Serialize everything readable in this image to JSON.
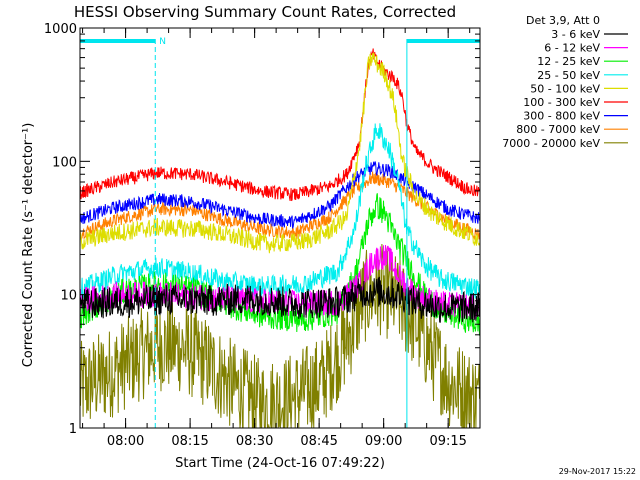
{
  "chart_data": {
    "type": "line",
    "title": "HESSI Observing Summary Count Rates, Corrected",
    "xlabel": "Start Time (24-Oct-16 07:49:22)",
    "ylabel": "Corrected Count Rate (s⁻¹ detector⁻¹)",
    "y_scale": "log",
    "ylim": [
      1,
      1000
    ],
    "xlim_minutes_after_start": [
      0,
      93
    ],
    "x_ticks": [
      "08:00",
      "08:15",
      "08:30",
      "08:45",
      "09:00",
      "09:15"
    ],
    "x_tick_minutes_after_start": [
      10.6,
      25.6,
      40.6,
      55.6,
      70.6,
      85.6
    ],
    "y_ticks": [
      "1",
      "10",
      "100",
      "1000"
    ],
    "y_tick_values": [
      1,
      10,
      100,
      1000
    ],
    "legend_title": "Det 3,9, Att 0",
    "legend_position": "right",
    "footer_date": "29-Nov-2017 15:22",
    "markers": {
      "night_bars": [
        [
          0,
          17.5
        ],
        [
          76,
          93
        ]
      ],
      "vertical_lines_minutes": [
        17.5,
        76
      ],
      "saa_flag": "N"
    },
    "series": [
      {
        "name": "3 - 6 keV",
        "color": "#000000",
        "noise": 0.12,
        "points": [
          [
            0,
            8.5
          ],
          [
            10,
            8.8
          ],
          [
            20,
            9.2
          ],
          [
            30,
            9.0
          ],
          [
            40,
            9.3
          ],
          [
            50,
            8.6
          ],
          [
            60,
            8.8
          ],
          [
            66,
            10.5
          ],
          [
            70,
            10.5
          ],
          [
            74,
            10.0
          ],
          [
            78,
            8.8
          ],
          [
            84,
            8.0
          ],
          [
            93,
            8.0
          ]
        ]
      },
      {
        "name": "6 - 12 keV",
        "color": "#ff00ff",
        "noise": 0.1,
        "points": [
          [
            0,
            9.0
          ],
          [
            10,
            10.0
          ],
          [
            20,
            10.0
          ],
          [
            30,
            9.5
          ],
          [
            40,
            9.0
          ],
          [
            52,
            8.5
          ],
          [
            60,
            8.8
          ],
          [
            65,
            12
          ],
          [
            68,
            18
          ],
          [
            70,
            19.5
          ],
          [
            72,
            18.5
          ],
          [
            74,
            14
          ],
          [
            78,
            10
          ],
          [
            84,
            8.5
          ],
          [
            93,
            8.0
          ]
        ]
      },
      {
        "name": "12 - 25 keV",
        "color": "#00ee00",
        "noise": 0.1,
        "points": [
          [
            0,
            7.0
          ],
          [
            10,
            10.5
          ],
          [
            18,
            12.0
          ],
          [
            26,
            11.0
          ],
          [
            34,
            8.5
          ],
          [
            42,
            7.0
          ],
          [
            52,
            6.5
          ],
          [
            60,
            7.5
          ],
          [
            64,
            14
          ],
          [
            67,
            35
          ],
          [
            69,
            47
          ],
          [
            71,
            40
          ],
          [
            73,
            28
          ],
          [
            76,
            18
          ],
          [
            80,
            10
          ],
          [
            84,
            7.5
          ],
          [
            93,
            6.0
          ]
        ]
      },
      {
        "name": "25 - 50 keV",
        "color": "#00eeee",
        "noise": 0.08,
        "points": [
          [
            0,
            11.0
          ],
          [
            10,
            14.5
          ],
          [
            18,
            16.0
          ],
          [
            26,
            14.5
          ],
          [
            34,
            12.5
          ],
          [
            42,
            11.5
          ],
          [
            52,
            12.0
          ],
          [
            60,
            15.0
          ],
          [
            64,
            32
          ],
          [
            66,
            80
          ],
          [
            68,
            140
          ],
          [
            69,
            175
          ],
          [
            70,
            160
          ],
          [
            72,
            120
          ],
          [
            74,
            70
          ],
          [
            76,
            30
          ],
          [
            80,
            17
          ],
          [
            84,
            13
          ],
          [
            93,
            11.0
          ]
        ]
      },
      {
        "name": "50 - 100 keV",
        "color": "#dddd00",
        "noise": 0.07,
        "points": [
          [
            0,
            25
          ],
          [
            8,
            29
          ],
          [
            18,
            32
          ],
          [
            28,
            31
          ],
          [
            36,
            27
          ],
          [
            44,
            24
          ],
          [
            52,
            25
          ],
          [
            58,
            30
          ],
          [
            62,
            38
          ],
          [
            65,
            130
          ],
          [
            67,
            520
          ],
          [
            68,
            610
          ],
          [
            69,
            540
          ],
          [
            71,
            450
          ],
          [
            73,
            280
          ],
          [
            75,
            100
          ],
          [
            78,
            55
          ],
          [
            82,
            40
          ],
          [
            87,
            32
          ],
          [
            93,
            26
          ]
        ]
      },
      {
        "name": "100 - 300 keV",
        "color": "#ff0000",
        "noise": 0.05,
        "points": [
          [
            0,
            58
          ],
          [
            8,
            70
          ],
          [
            18,
            82
          ],
          [
            26,
            80
          ],
          [
            34,
            70
          ],
          [
            42,
            60
          ],
          [
            50,
            56
          ],
          [
            58,
            65
          ],
          [
            62,
            80
          ],
          [
            65,
            140
          ],
          [
            67,
            520
          ],
          [
            68,
            640
          ],
          [
            69,
            560
          ],
          [
            71,
            470
          ],
          [
            73,
            420
          ],
          [
            74,
            370
          ],
          [
            75,
            300
          ],
          [
            76,
            190
          ],
          [
            78,
            120
          ],
          [
            82,
            90
          ],
          [
            86,
            75
          ],
          [
            90,
            62
          ],
          [
            93,
            58
          ]
        ]
      },
      {
        "name": "300 - 800 keV",
        "color": "#0000ff",
        "noise": 0.05,
        "points": [
          [
            0,
            37
          ],
          [
            8,
            45
          ],
          [
            18,
            52
          ],
          [
            26,
            50
          ],
          [
            34,
            43
          ],
          [
            42,
            37
          ],
          [
            50,
            35
          ],
          [
            58,
            46
          ],
          [
            64,
            75
          ],
          [
            68,
            90
          ],
          [
            72,
            85
          ],
          [
            76,
            70
          ],
          [
            80,
            57
          ],
          [
            86,
            43
          ],
          [
            93,
            37
          ]
        ]
      },
      {
        "name": "800 - 7000 keV",
        "color": "#ff8000",
        "noise": 0.05,
        "points": [
          [
            0,
            29
          ],
          [
            8,
            36
          ],
          [
            18,
            44
          ],
          [
            26,
            43
          ],
          [
            34,
            36
          ],
          [
            42,
            31
          ],
          [
            50,
            29
          ],
          [
            58,
            38
          ],
          [
            64,
            62
          ],
          [
            68,
            75
          ],
          [
            72,
            70
          ],
          [
            76,
            58
          ],
          [
            80,
            46
          ],
          [
            86,
            35
          ],
          [
            93,
            28
          ]
        ]
      },
      {
        "name": "7000 - 20000 keV",
        "color": "#808000",
        "noise": 0.35,
        "points": [
          [
            0,
            2.0
          ],
          [
            8,
            2.7
          ],
          [
            18,
            4.2
          ],
          [
            24,
            4.0
          ],
          [
            30,
            3.0
          ],
          [
            36,
            2.0
          ],
          [
            42,
            1.5
          ],
          [
            48,
            1.6
          ],
          [
            56,
            2.2
          ],
          [
            62,
            4.5
          ],
          [
            66,
            9.5
          ],
          [
            70,
            11.0
          ],
          [
            74,
            9.0
          ],
          [
            78,
            6.0
          ],
          [
            82,
            3.5
          ],
          [
            86,
            2.2
          ],
          [
            93,
            1.6
          ]
        ]
      }
    ]
  }
}
